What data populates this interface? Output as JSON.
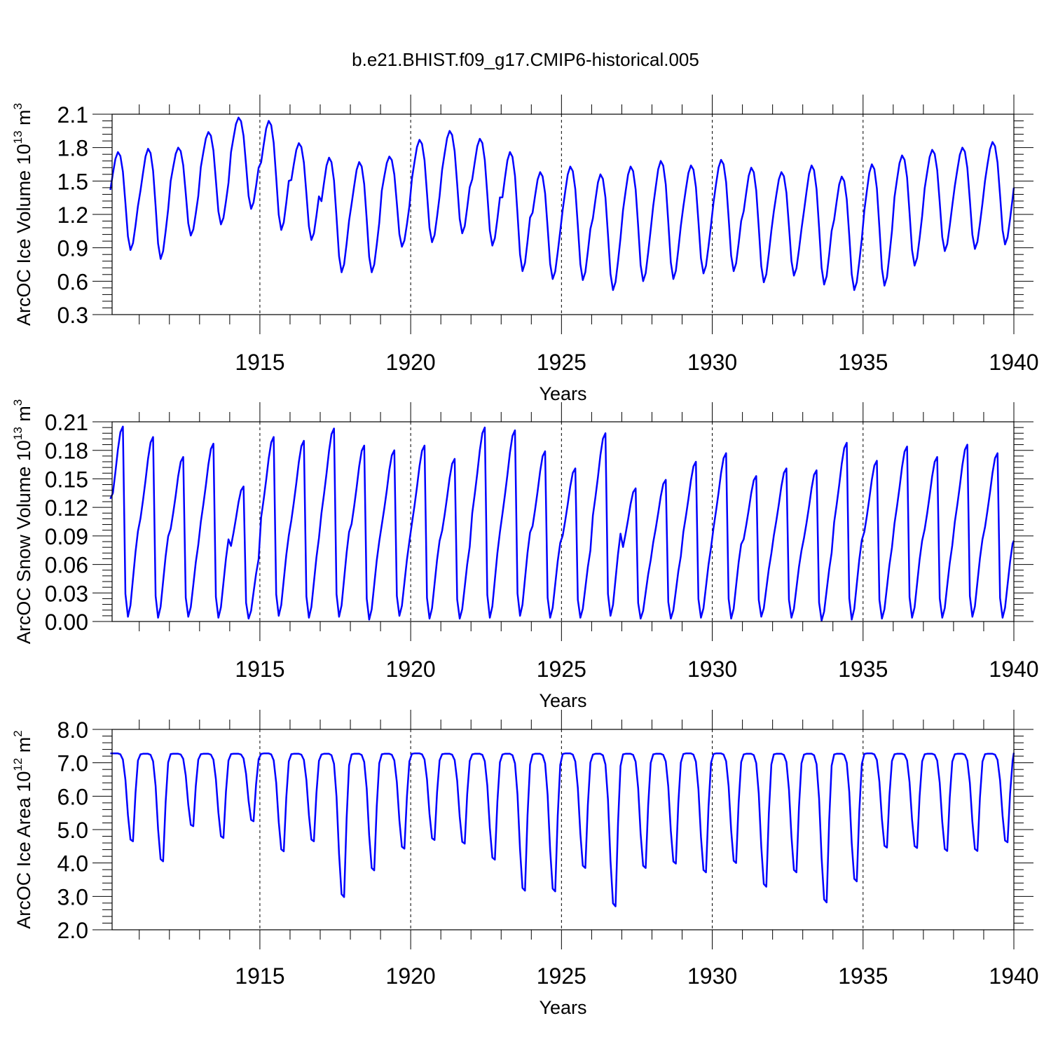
{
  "figure": {
    "title": "b.e21.BHIST.f09_g17.CMIP6-historical.005",
    "line_color": "#0000ff"
  },
  "chart_data": [
    {
      "type": "line",
      "title": "b.e21.BHIST.f09_g17.CMIP6-historical.005",
      "xlabel": "Years",
      "ylabel": "ArcOC Ice Volume 10",
      "ylabel_exp": "13",
      "ylabel_unit": "m",
      "ylabel_unit_exp": "3",
      "xlim": [
        1910.1,
        1940
      ],
      "ylim": [
        0.3,
        2.1
      ],
      "yticks": [
        0.3,
        0.6,
        0.9,
        1.2,
        1.5,
        1.8,
        2.1
      ],
      "ytick_labels": [
        "0.3",
        "0.6",
        "0.9",
        "1.2",
        "1.5",
        "1.8",
        "2.1"
      ],
      "xticks": [
        1915,
        1920,
        1925,
        1930,
        1935,
        1940
      ],
      "xtick_labels": [
        "1915",
        "1920",
        "1925",
        "1930",
        "1935",
        "1940"
      ],
      "grid": "dashed vertical lines at major x ticks",
      "series": [
        {
          "name": "ArcOC Ice Volume",
          "annual_max": [
            1.76,
            1.79,
            1.8,
            1.94,
            2.07,
            2.04,
            1.84,
            1.71,
            1.67,
            1.72,
            1.87,
            1.95,
            1.88,
            1.76,
            1.58,
            1.63,
            1.56,
            1.63,
            1.68,
            1.64,
            1.69,
            1.62,
            1.58,
            1.64,
            1.54,
            1.65,
            1.73,
            1.78,
            1.8,
            1.85
          ],
          "annual_min": [
            0.88,
            0.8,
            1.01,
            1.11,
            1.25,
            1.06,
            0.97,
            0.68,
            0.68,
            0.91,
            0.95,
            1.03,
            0.92,
            0.69,
            0.62,
            0.61,
            0.52,
            0.6,
            0.62,
            0.67,
            0.69,
            0.59,
            0.65,
            0.57,
            0.52,
            0.56,
            0.74,
            0.87,
            0.89,
            0.93
          ],
          "start_value": 1.42,
          "end_value": 1.44
        }
      ]
    },
    {
      "type": "line",
      "xlabel": "Years",
      "ylabel": "ArcOC Snow Volume 10",
      "ylabel_exp": "13",
      "ylabel_unit": "m",
      "ylabel_unit_exp": "3",
      "xlim": [
        1910.1,
        1940
      ],
      "ylim": [
        0.0,
        0.21
      ],
      "yticks": [
        0.0,
        0.03,
        0.06,
        0.09,
        0.12,
        0.15,
        0.18,
        0.21
      ],
      "ytick_labels": [
        "0.00",
        "0.03",
        "0.06",
        "0.09",
        "0.12",
        "0.15",
        "0.18",
        "0.21"
      ],
      "xticks": [
        1915,
        1920,
        1925,
        1930,
        1935,
        1940
      ],
      "xtick_labels": [
        "1915",
        "1920",
        "1925",
        "1930",
        "1935",
        "1940"
      ],
      "grid": "dashed vertical lines at major x ticks",
      "series": [
        {
          "name": "ArcOC Snow Volume",
          "annual_max": [
            0.205,
            0.194,
            0.173,
            0.187,
            0.142,
            0.194,
            0.19,
            0.203,
            0.185,
            0.18,
            0.185,
            0.171,
            0.204,
            0.201,
            0.179,
            0.161,
            0.198,
            0.14,
            0.149,
            0.168,
            0.177,
            0.153,
            0.161,
            0.159,
            0.188,
            0.169,
            0.184,
            0.173,
            0.186,
            0.177
          ],
          "annual_min": [
            0.005,
            0.004,
            0.005,
            0.004,
            0.003,
            0.006,
            0.004,
            0.005,
            0.002,
            0.006,
            0.003,
            0.003,
            0.004,
            0.006,
            0.004,
            0.004,
            0.006,
            0.003,
            0.003,
            0.004,
            0.003,
            0.005,
            0.004,
            0.001,
            0.002,
            0.003,
            0.004,
            0.004,
            0.005,
            0.004
          ],
          "start_value": 0.129,
          "end_value": 0.085
        }
      ]
    },
    {
      "type": "line",
      "xlabel": "Years",
      "ylabel": "ArcOC Ice Area 10",
      "ylabel_exp": "12",
      "ylabel_unit": "m",
      "ylabel_unit_exp": "2",
      "xlim": [
        1910.1,
        1940
      ],
      "ylim": [
        2.0,
        8.0
      ],
      "yticks": [
        2.0,
        3.0,
        4.0,
        5.0,
        6.0,
        7.0,
        8.0
      ],
      "ytick_labels": [
        "2.0",
        "3.0",
        "4.0",
        "5.0",
        "6.0",
        "7.0",
        "8.0"
      ],
      "xticks": [
        1915,
        1920,
        1925,
        1930,
        1935,
        1940
      ],
      "xtick_labels": [
        "1915",
        "1920",
        "1925",
        "1930",
        "1935",
        "1940"
      ],
      "grid": "dashed vertical lines at major x ticks",
      "series": [
        {
          "name": "ArcOC Ice Area",
          "annual_max": [
            7.28,
            7.27,
            7.27,
            7.27,
            7.27,
            7.28,
            7.27,
            7.27,
            7.27,
            7.27,
            7.28,
            7.27,
            7.27,
            7.27,
            7.27,
            7.28,
            7.27,
            7.27,
            7.27,
            7.28,
            7.28,
            7.27,
            7.27,
            7.27,
            7.27,
            7.28,
            7.27,
            7.27,
            7.27,
            7.27
          ],
          "annual_min": [
            4.65,
            4.05,
            5.1,
            4.75,
            5.25,
            4.35,
            4.65,
            2.98,
            3.78,
            4.43,
            4.69,
            4.58,
            4.1,
            3.17,
            3.15,
            3.85,
            2.7,
            3.85,
            3.98,
            3.72,
            4.0,
            3.29,
            3.72,
            2.82,
            3.45,
            4.46,
            4.45,
            4.36,
            4.36,
            4.62
          ],
          "start_value": 7.28,
          "end_value": 7.3
        }
      ]
    }
  ]
}
